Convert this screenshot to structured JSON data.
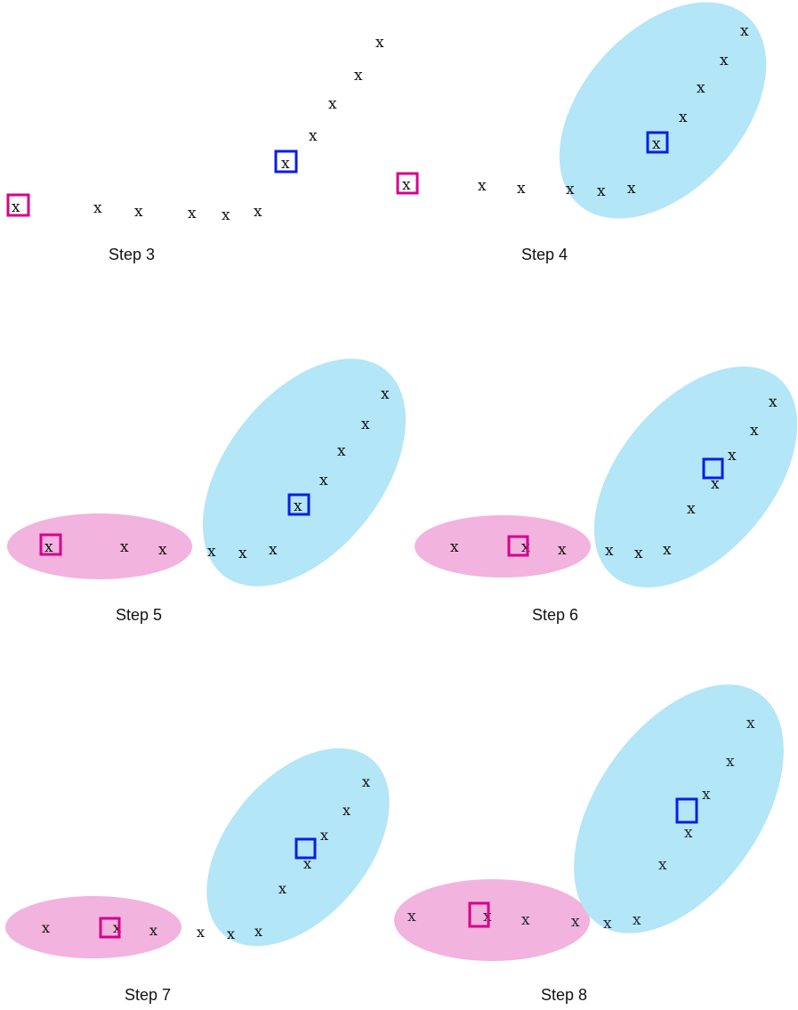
{
  "point_label": "x",
  "panels": [
    {
      "caption": "Step 3"
    },
    {
      "caption": "Step 4"
    },
    {
      "caption": "Step 5"
    },
    {
      "caption": "Step 6"
    },
    {
      "caption": "Step 7"
    },
    {
      "caption": "Step 8"
    }
  ],
  "colors": {
    "magenta_centroid": "#d6008c",
    "blue_centroid": "#0a1ee6",
    "blue_cluster_fill": "#b3e6f7",
    "pink_cluster_fill": "#f2b3de",
    "point_text": "#111111"
  },
  "icons": [
    "square-centroid-icon"
  ]
}
